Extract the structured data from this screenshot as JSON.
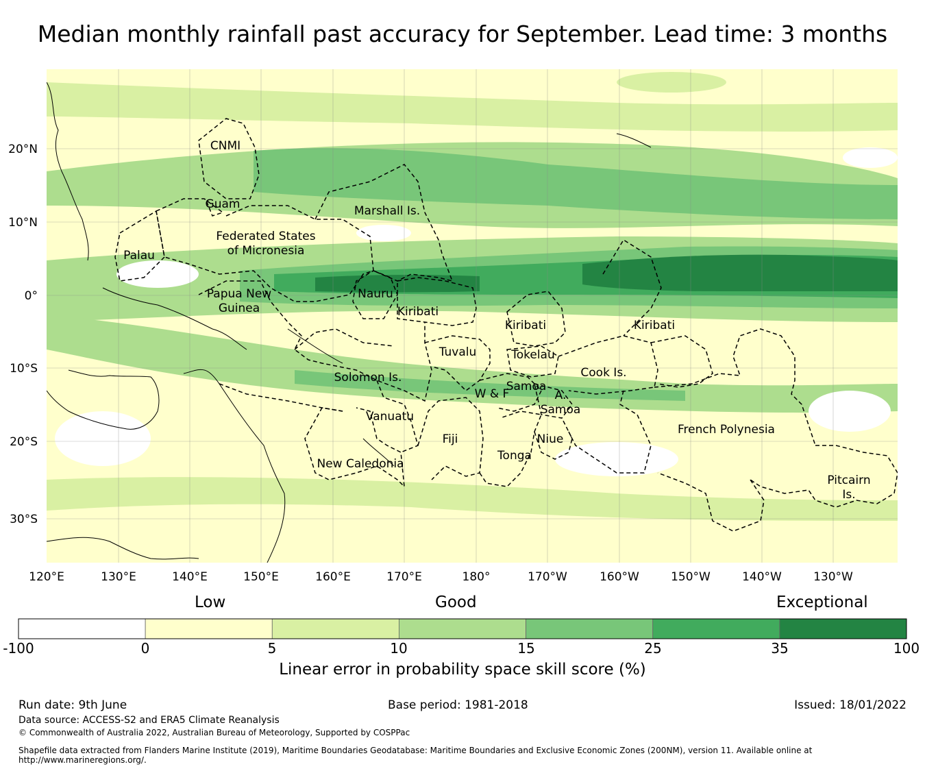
{
  "title": "Median monthly rainfall past accuracy for September. Lead time: 3 months",
  "map": {
    "lon_labels": [
      "120°E",
      "130°E",
      "140°E",
      "150°E",
      "160°E",
      "170°E",
      "180°",
      "170°W",
      "160°W",
      "150°W",
      "140°W",
      "130°W"
    ],
    "lat_labels": [
      "20°N",
      "10°N",
      "0°",
      "10°S",
      "20°S",
      "30°S"
    ],
    "regions": [
      {
        "name": "CNMI"
      },
      {
        "name": "Guam"
      },
      {
        "name": "Marshall Is."
      },
      {
        "name": "Federated States"
      },
      {
        "name": "of Micronesia"
      },
      {
        "name": "Palau"
      },
      {
        "name": "Papua New"
      },
      {
        "name": "Guinea"
      },
      {
        "name": "Nauru"
      },
      {
        "name": "Kiribati"
      },
      {
        "name": "Kiribati"
      },
      {
        "name": "Kiribati"
      },
      {
        "name": "Tuvalu"
      },
      {
        "name": "Tokelau"
      },
      {
        "name": "Solomon Is."
      },
      {
        "name": "Cook Is."
      },
      {
        "name": "Samoa"
      },
      {
        "name": "W & F"
      },
      {
        "name": "A."
      },
      {
        "name": "Samoa"
      },
      {
        "name": "Vanuatu"
      },
      {
        "name": "Fiji"
      },
      {
        "name": "Niue"
      },
      {
        "name": "Tonga"
      },
      {
        "name": "French Polynesia"
      },
      {
        "name": "New Caledonia"
      },
      {
        "name": "Pitcairn"
      },
      {
        "name": "Is."
      }
    ]
  },
  "colorbar": {
    "categories": [
      "Low",
      "Good",
      "Exceptional"
    ],
    "ticks": [
      "-100",
      "0",
      "5",
      "10",
      "15",
      "25",
      "35",
      "100"
    ],
    "colors": [
      "#ffffff",
      "#ffffcc",
      "#d9f0a3",
      "#addd8e",
      "#78c679",
      "#41ab5d",
      "#238443"
    ],
    "title": "Linear error in probability space skill score (%)"
  },
  "footer": {
    "run_date": "Run date: 9th June",
    "base_period": "Base period: 1981-2018",
    "issued": "Issued: 18/01/2022",
    "data_source": "Data source: ACCESS-S2 and ERA5 Climate Reanalysis",
    "copyright": "© Commonwealth of Australia 2022, Australian Bureau of Meteorology, Supported by COSPPac",
    "shapefile_line1": "Shapefile data extracted from Flanders Marine Institute (2019), Maritime Boundaries Geodatabase: Maritime Boundaries and Exclusive Economic Zones (200NM), version 11. Available online at",
    "shapefile_line2": "http://www.marineregions.org/."
  }
}
